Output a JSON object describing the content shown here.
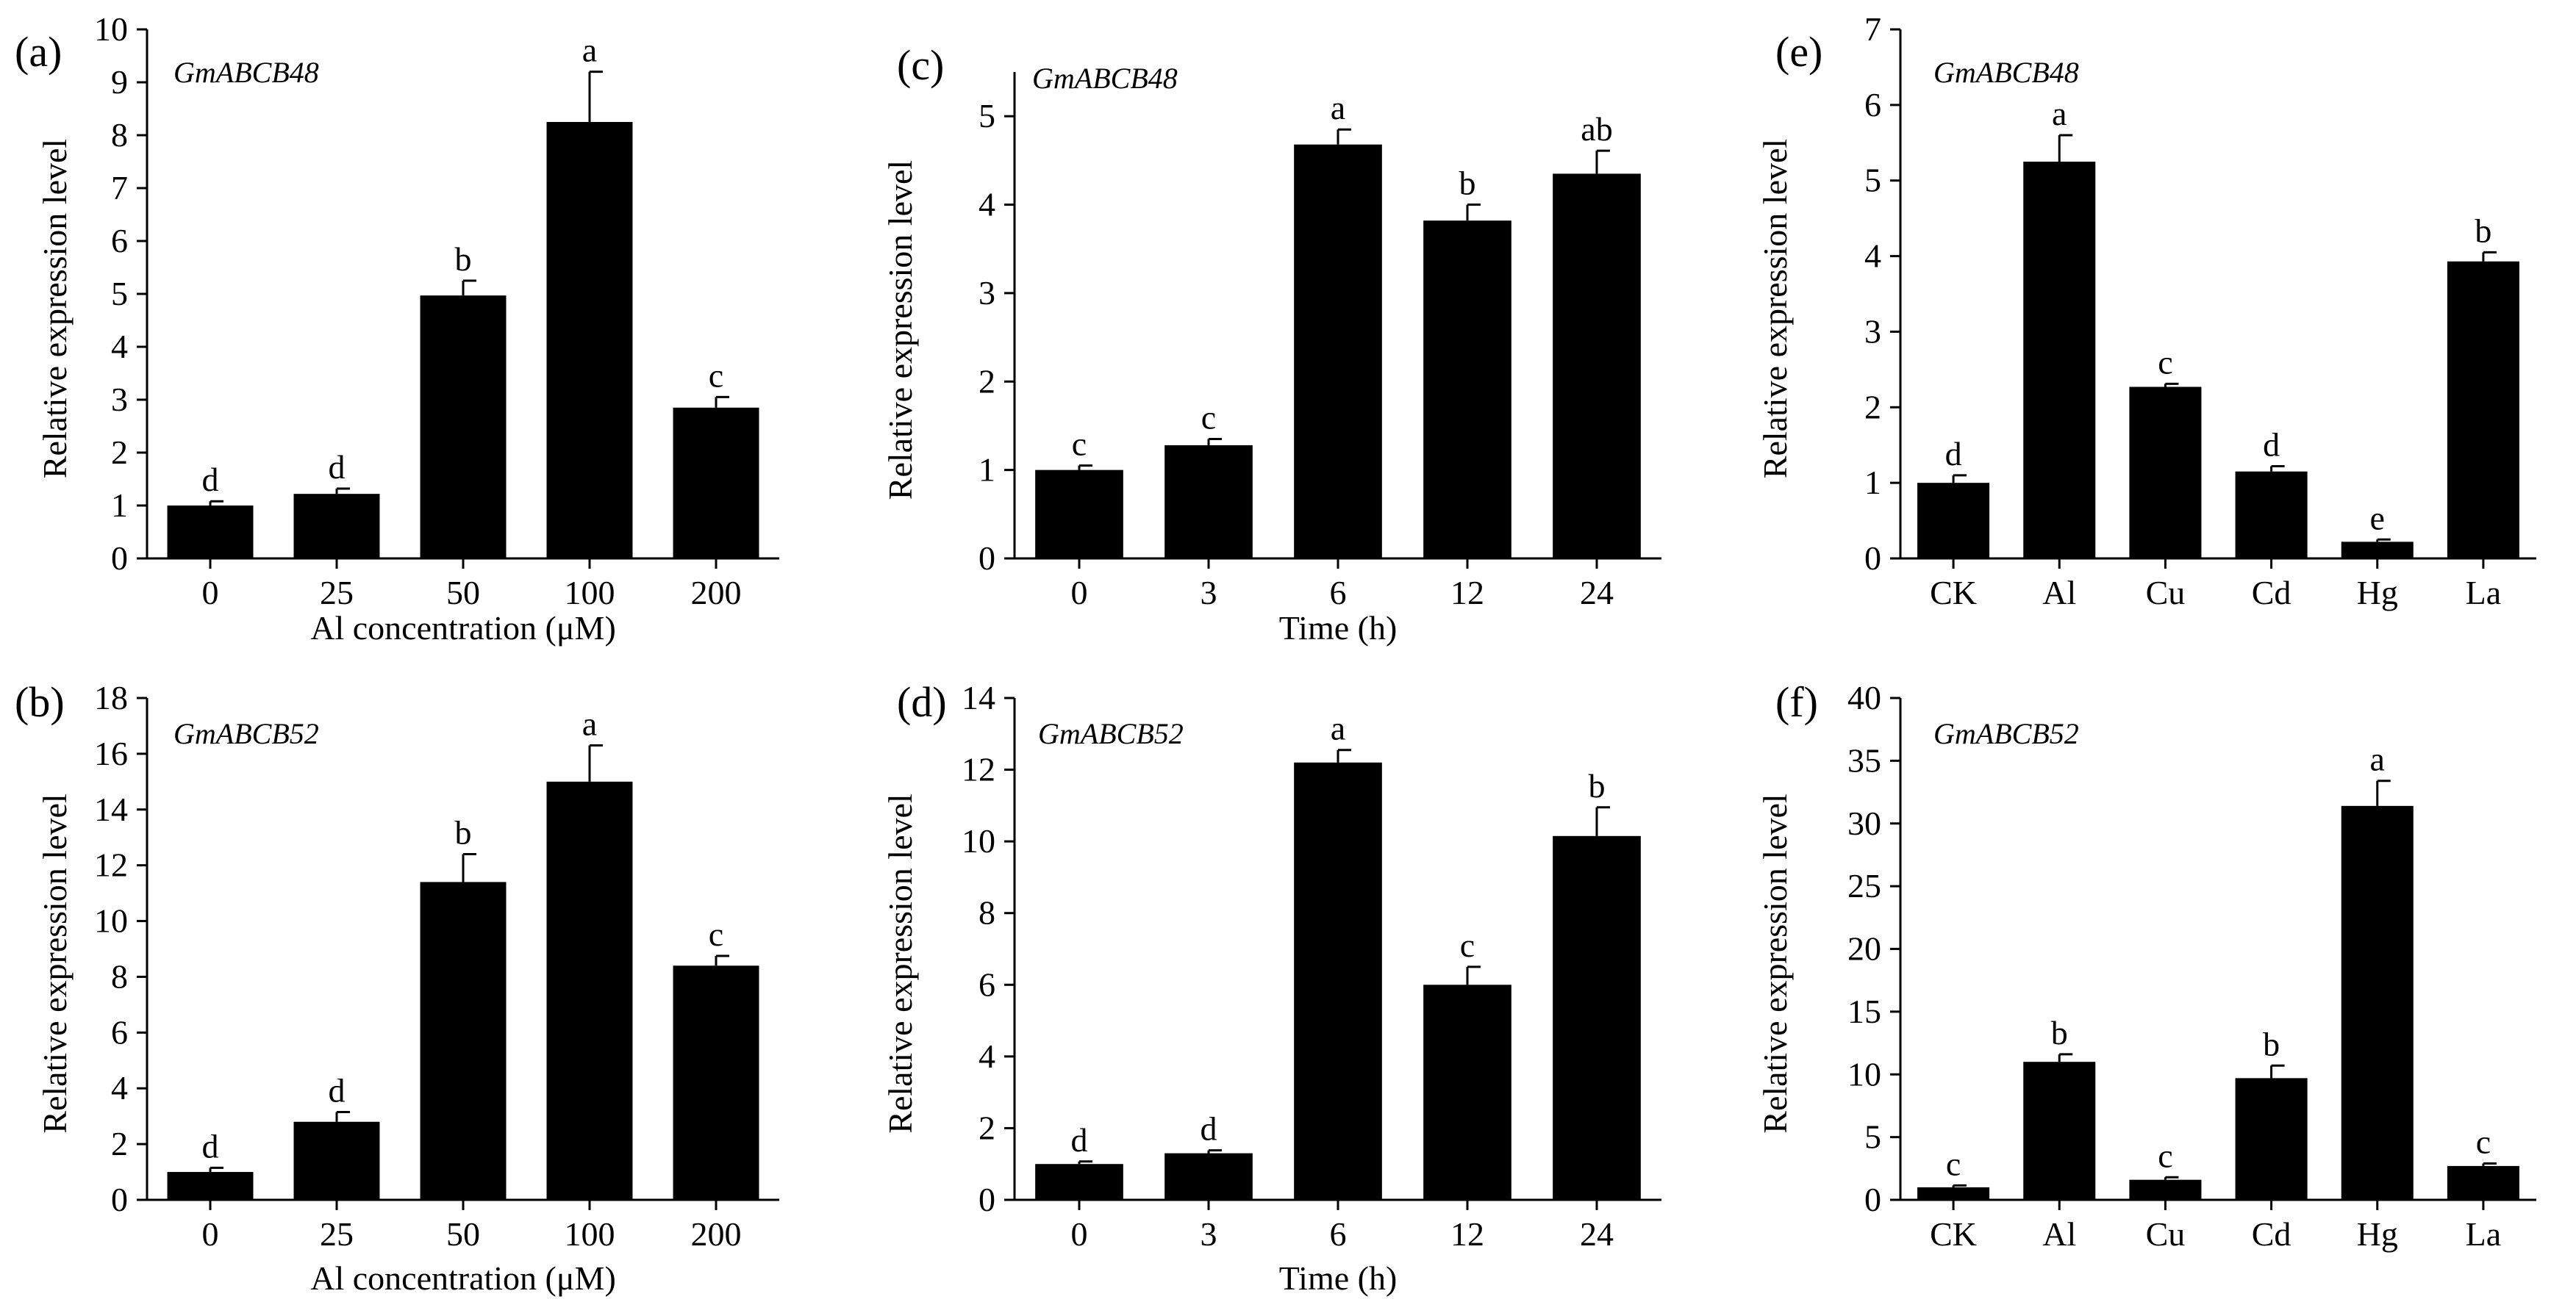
{
  "figure": {
    "description_panels": [
      "a",
      "b",
      "c",
      "d",
      "e",
      "f"
    ]
  },
  "chart_data": [
    {
      "panel": "(a)",
      "type": "bar",
      "title": "GmABCB48",
      "xlabel": "Al concentration (μM)",
      "ylabel": "Relative expression level",
      "categories": [
        "0",
        "25",
        "50",
        "100",
        "200"
      ],
      "values": [
        1.0,
        1.22,
        4.97,
        8.25,
        2.85
      ],
      "errors": [
        0.08,
        0.1,
        0.28,
        0.95,
        0.2
      ],
      "letters": [
        "d",
        "d",
        "b",
        "a",
        "c"
      ],
      "ylim": [
        0,
        10
      ],
      "yticks": [
        "0",
        "1",
        "2",
        "3",
        "4",
        "5",
        "6",
        "7",
        "8",
        "9",
        "10"
      ],
      "bar_color": "#000000"
    },
    {
      "panel": "(b)",
      "type": "bar",
      "title": "GmABCB52",
      "xlabel": "Al concentration (μM)",
      "ylabel": "Relative expression level",
      "categories": [
        "0",
        "25",
        "50",
        "100",
        "200"
      ],
      "values": [
        1.0,
        2.8,
        11.4,
        15.0,
        8.4
      ],
      "errors": [
        0.15,
        0.35,
        1.0,
        1.3,
        0.35
      ],
      "letters": [
        "d",
        "d",
        "b",
        "a",
        "c"
      ],
      "ylim": [
        0,
        18
      ],
      "yticks": [
        "0",
        "2",
        "4",
        "6",
        "8",
        "10",
        "12",
        "14",
        "16",
        "18"
      ],
      "bar_color": "#000000"
    },
    {
      "panel": "(c)",
      "type": "bar",
      "title": "GmABCB48",
      "xlabel": "Time (h)",
      "ylabel": "Relative expression level",
      "categories": [
        "0",
        "3",
        "6",
        "12",
        "24"
      ],
      "values": [
        1.0,
        1.28,
        4.68,
        3.82,
        4.35
      ],
      "errors": [
        0.05,
        0.07,
        0.17,
        0.18,
        0.26
      ],
      "letters": [
        "c",
        "c",
        "a",
        "b",
        "ab"
      ],
      "ylim": [
        0,
        5.5
      ],
      "yticks": [
        "0",
        "1",
        "2",
        "3",
        "4",
        "5"
      ],
      "bar_color": "#000000"
    },
    {
      "panel": "(d)",
      "type": "bar",
      "title": "GmABCB52",
      "xlabel": "Time (h)",
      "ylabel": "Relative expression level",
      "categories": [
        "0",
        "3",
        "6",
        "12",
        "24"
      ],
      "values": [
        1.0,
        1.3,
        12.2,
        6.0,
        10.15
      ],
      "errors": [
        0.07,
        0.08,
        0.35,
        0.5,
        0.8
      ],
      "letters": [
        "d",
        "d",
        "a",
        "c",
        "b"
      ],
      "ylim": [
        0,
        14
      ],
      "yticks": [
        "0",
        "2",
        "4",
        "6",
        "8",
        "10",
        "12",
        "14"
      ],
      "bar_color": "#000000"
    },
    {
      "panel": "(e)",
      "type": "bar",
      "title": "GmABCB48",
      "xlabel": "",
      "ylabel": "Relative expression level",
      "categories": [
        "CK",
        "Al",
        "Cu",
        "Cd",
        "Hg",
        "La"
      ],
      "values": [
        1.0,
        5.25,
        2.27,
        1.15,
        0.22,
        3.93
      ],
      "errors": [
        0.1,
        0.35,
        0.04,
        0.07,
        0.03,
        0.12
      ],
      "letters": [
        "d",
        "a",
        "c",
        "d",
        "e",
        "b"
      ],
      "ylim": [
        0,
        7
      ],
      "yticks": [
        "0",
        "1",
        "2",
        "3",
        "4",
        "5",
        "6",
        "7"
      ],
      "bar_color": "#000000"
    },
    {
      "panel": "(f)",
      "type": "bar",
      "title": "GmABCB52",
      "xlabel": "",
      "ylabel": "Relative expression level",
      "categories": [
        "CK",
        "Al",
        "Cu",
        "Cd",
        "Hg",
        "La"
      ],
      "values": [
        1.0,
        11.0,
        1.6,
        9.7,
        31.4,
        2.7
      ],
      "errors": [
        0.15,
        0.6,
        0.2,
        1.0,
        2.0,
        0.2
      ],
      "letters": [
        "c",
        "b",
        "c",
        "b",
        "a",
        "c"
      ],
      "ylim": [
        0,
        40
      ],
      "yticks": [
        "0",
        "5",
        "10",
        "15",
        "20",
        "25",
        "30",
        "35",
        "40"
      ],
      "bar_color": "#000000"
    }
  ]
}
